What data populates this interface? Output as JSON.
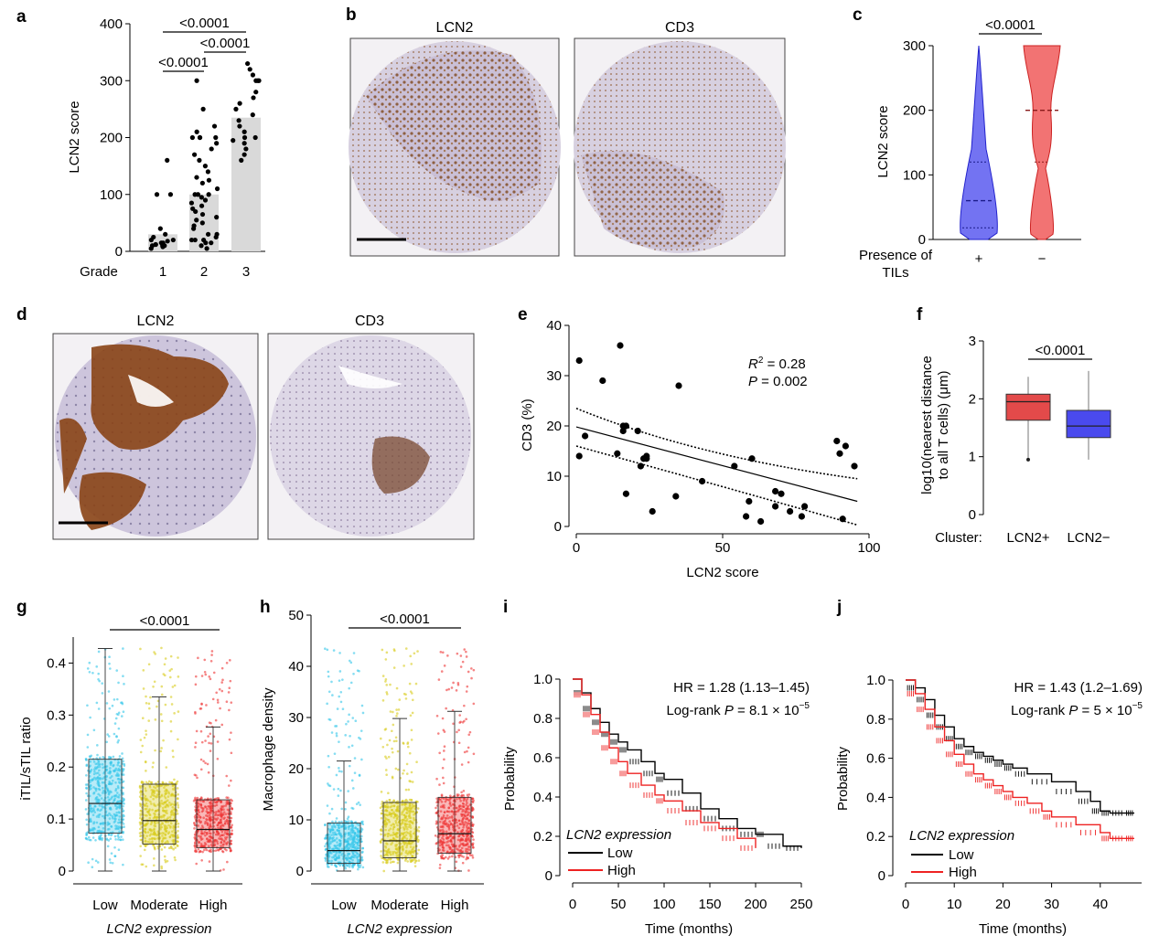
{
  "panels": {
    "a": {
      "letter": "a",
      "ylabel": "LCN2 score",
      "xaxis_name": "Grade",
      "yticks": [
        "0",
        "100",
        "200",
        "300",
        "400"
      ],
      "categories": [
        "1",
        "2",
        "3"
      ],
      "pvalues": [
        "<0.0001",
        "<0.0001",
        "<0.0001"
      ]
    },
    "b": {
      "letter": "b",
      "titles": [
        "LCN2",
        "CD3"
      ]
    },
    "c": {
      "letter": "c",
      "ylabel": "LCN2 score",
      "yticks": [
        "0",
        "100",
        "200",
        "300"
      ],
      "xaxis_name_line1": "Presence of",
      "xaxis_name_line2": "TILs",
      "categories": [
        "+",
        "−"
      ],
      "pvalue": "<0.0001",
      "colors": {
        "plus": "#4444ee",
        "minus": "#ee4444"
      }
    },
    "d": {
      "letter": "d",
      "titles": [
        "LCN2",
        "CD3"
      ]
    },
    "e": {
      "letter": "e",
      "xlabel": "LCN2 score",
      "ylabel": "CD3 (%)",
      "xticks": [
        "0",
        "50",
        "100"
      ],
      "yticks": [
        "0",
        "10",
        "20",
        "30",
        "40"
      ],
      "r2_label": "R",
      "r2_value": " = 0.28",
      "p_label": "P",
      "p_value": " = 0.002"
    },
    "f": {
      "letter": "f",
      "ylabel_line1": "log10(nearest distance",
      "ylabel_line2": "to all T cells) (μm)",
      "yticks": [
        "0",
        "1",
        "2",
        "3"
      ],
      "xaxis_name": "Cluster:",
      "categories": [
        "LCN2+",
        "LCN2−"
      ],
      "pvalue": "<0.0001",
      "colors": {
        "pos": "#e34a4a",
        "neg": "#4a4aee"
      }
    },
    "g": {
      "letter": "g",
      "ylabel": "iTIL/sTIL ratio",
      "yticks": [
        "0",
        "0.1",
        "0.2",
        "0.3",
        "0.4"
      ],
      "categories": [
        "Low",
        "Moderate",
        "High"
      ],
      "xlabel": "LCN2 expression",
      "pvalue": "<0.0001",
      "colors": [
        "#33c7ea",
        "#d8cc1a",
        "#ee3333"
      ]
    },
    "h": {
      "letter": "h",
      "ylabel": "Macrophage density",
      "yticks": [
        "0",
        "10",
        "20",
        "30",
        "40",
        "50"
      ],
      "categories": [
        "Low",
        "Moderate",
        "High"
      ],
      "xlabel": "LCN2 expression",
      "pvalue": "<0.0001",
      "colors": [
        "#33c7ea",
        "#d8cc1a",
        "#ee3333"
      ]
    },
    "i": {
      "letter": "i",
      "xlabel": "Time (months)",
      "ylabel": "Probability",
      "xticks": [
        "0",
        "50",
        "100",
        "150",
        "200",
        "250"
      ],
      "yticks": [
        "0",
        "0.2",
        "0.4",
        "0.6",
        "0.8",
        "1.0"
      ],
      "hr": "HR = 1.28 (1.13–1.45)",
      "logrank_prefix": "Log-rank ",
      "logrank_p": "P",
      "logrank_value": " = 8.1 × 10",
      "logrank_exp": "−5",
      "legend_title": "LCN2 expression",
      "legend_low": "Low",
      "legend_high": "High"
    },
    "j": {
      "letter": "j",
      "xlabel": "Time (months)",
      "ylabel": "Probability",
      "xticks": [
        "0",
        "10",
        "20",
        "30",
        "40"
      ],
      "yticks": [
        "0",
        "0.2",
        "0.4",
        "0.6",
        "0.8",
        "1.0"
      ],
      "hr": "HR = 1.43 (1.2–1.69)",
      "logrank_prefix": "Log-rank ",
      "logrank_p": "P",
      "logrank_value": " = 5 × 10",
      "logrank_exp": "−5",
      "legend_title": "LCN2 expression",
      "legend_low": "Low",
      "legend_high": "High"
    }
  },
  "chart_data": [
    {
      "panel": "a",
      "type": "bar",
      "categories": [
        "1",
        "2",
        "3"
      ],
      "values": [
        30,
        100,
        235
      ],
      "ylim": [
        0,
        400
      ],
      "ylabel": "LCN2 score",
      "xlabel": "Grade"
    },
    {
      "panel": "c",
      "type": "violin",
      "categories": [
        "+",
        "−"
      ],
      "median": [
        60,
        200
      ],
      "ylim": [
        0,
        300
      ],
      "ylabel": "LCN2 score"
    },
    {
      "panel": "e",
      "type": "scatter",
      "xlabel": "LCN2 score",
      "ylabel": "CD3 (%)",
      "xlim": [
        0,
        100
      ],
      "ylim": [
        0,
        40
      ],
      "x": [
        1,
        1,
        3,
        9,
        15,
        16,
        16,
        17,
        14,
        21,
        17,
        24,
        23,
        24,
        22,
        26,
        35,
        34,
        43,
        54,
        60,
        59,
        58,
        63,
        68,
        70,
        68,
        73,
        78,
        77,
        89,
        90,
        92,
        95,
        91
      ],
      "y": [
        33,
        14,
        18,
        29,
        36,
        19,
        20,
        20,
        14.5,
        19,
        6.5,
        14,
        13.5,
        13.5,
        12,
        3,
        28,
        6,
        9,
        12,
        13.5,
        5,
        2,
        1,
        7,
        6.5,
        4,
        3,
        4,
        2,
        17,
        14.5,
        16,
        12,
        1.5
      ],
      "fit": {
        "x": [
          0,
          96
        ],
        "y": [
          19.8,
          5.0
        ]
      }
    },
    {
      "panel": "f",
      "type": "box",
      "categories": [
        "LCN2+",
        "LCN2−"
      ],
      "median": [
        1.95,
        1.53
      ],
      "q1": [
        1.63,
        1.33
      ],
      "q3": [
        2.08,
        1.8
      ],
      "whisker_low": [
        0.95,
        0.95
      ],
      "whisker_high": [
        2.38,
        2.48
      ],
      "ylim": [
        0,
        3
      ]
    },
    {
      "panel": "g",
      "type": "box",
      "categories": [
        "Low",
        "Moderate",
        "High"
      ],
      "median": [
        0.13,
        0.097,
        0.08
      ],
      "q1": [
        0.073,
        0.052,
        0.045
      ],
      "q3": [
        0.215,
        0.167,
        0.137
      ],
      "whisker_low": [
        0.0,
        0.0,
        0.0
      ],
      "whisker_high": [
        0.428,
        0.335,
        0.277
      ],
      "ylim": [
        0,
        0.48
      ],
      "ylabel": "iTIL/sTIL ratio",
      "xlabel": "LCN2 expression"
    },
    {
      "panel": "h",
      "type": "box",
      "categories": [
        "Low",
        "Moderate",
        "High"
      ],
      "median": [
        4.0,
        5.9,
        7.3
      ],
      "q1": [
        1.5,
        2.6,
        3.5
      ],
      "q3": [
        9.4,
        13.4,
        14.4
      ],
      "whisker_low": [
        0.0,
        0.0,
        0.0
      ],
      "whisker_high": [
        21.5,
        29.8,
        31.2
      ],
      "ylim": [
        0,
        50
      ],
      "ylabel": "Macrophage density",
      "xlabel": "LCN2 expression"
    },
    {
      "panel": "i",
      "type": "line",
      "xlabel": "Time (months)",
      "ylabel": "Probability",
      "xlim": [
        0,
        250
      ],
      "ylim": [
        0,
        1
      ],
      "series": [
        {
          "name": "Low",
          "x": [
            0,
            10,
            20,
            30,
            40,
            50,
            60,
            75,
            90,
            100,
            120,
            140,
            160,
            180,
            200,
            210,
            230,
            250
          ],
          "y": [
            1.0,
            0.93,
            0.85,
            0.78,
            0.72,
            0.68,
            0.64,
            0.58,
            0.52,
            0.49,
            0.42,
            0.34,
            0.29,
            0.24,
            0.21,
            0.21,
            0.15,
            0.14
          ]
        },
        {
          "name": "High",
          "x": [
            0,
            10,
            20,
            30,
            40,
            50,
            60,
            75,
            90,
            100,
            120,
            140,
            160,
            180,
            200
          ],
          "y": [
            1.0,
            0.92,
            0.82,
            0.73,
            0.65,
            0.58,
            0.52,
            0.46,
            0.41,
            0.38,
            0.33,
            0.27,
            0.24,
            0.19,
            0.14
          ]
        }
      ]
    },
    {
      "panel": "j",
      "type": "line",
      "xlabel": "Time (months)",
      "ylabel": "Probability",
      "xlim": [
        0,
        48
      ],
      "ylim": [
        0,
        1
      ],
      "series": [
        {
          "name": "Low",
          "x": [
            0,
            2,
            4,
            6,
            8,
            10,
            12,
            14,
            16,
            18,
            20,
            22,
            25,
            30,
            35,
            38,
            40,
            42,
            45,
            47
          ],
          "y": [
            1.0,
            0.96,
            0.9,
            0.82,
            0.76,
            0.7,
            0.66,
            0.63,
            0.61,
            0.59,
            0.57,
            0.55,
            0.52,
            0.48,
            0.43,
            0.38,
            0.33,
            0.32,
            0.32,
            0.32
          ]
        },
        {
          "name": "High",
          "x": [
            0,
            2,
            4,
            6,
            8,
            10,
            12,
            14,
            16,
            18,
            20,
            22,
            25,
            28,
            30,
            35,
            40,
            42,
            45,
            47
          ],
          "y": [
            1.0,
            0.93,
            0.85,
            0.76,
            0.69,
            0.62,
            0.57,
            0.52,
            0.49,
            0.46,
            0.43,
            0.4,
            0.37,
            0.33,
            0.3,
            0.26,
            0.22,
            0.19,
            0.19,
            0.19
          ]
        }
      ]
    }
  ]
}
